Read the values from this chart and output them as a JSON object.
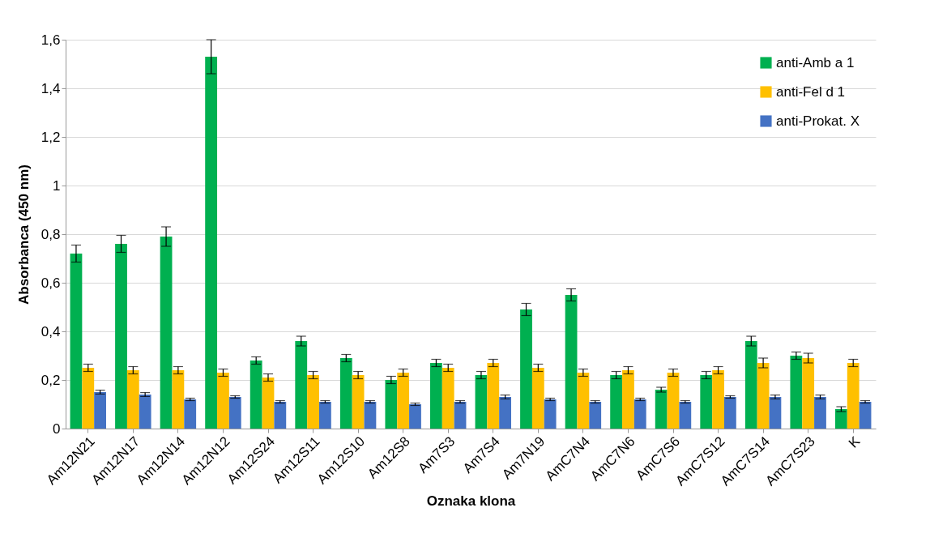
{
  "chart_data": {
    "type": "bar",
    "xlabel": "Oznaka klona",
    "ylabel": "Absorbanca (450 nm)",
    "categories": [
      "Am12N21",
      "Am12N17",
      "Am12N14",
      "Am12N12",
      "Am12S24",
      "Am12S11",
      "Am12S10",
      "Am12S8",
      "Am7S3",
      "Am7S4",
      "Am7N19",
      "AmC7N4",
      "AmC7N6",
      "AmC7S6",
      "AmC7S12",
      "AmC7S14",
      "AmC7S23",
      "K"
    ],
    "series": [
      {
        "name": "anti-Amb a 1",
        "color": "#00b050",
        "values": [
          0.72,
          0.76,
          0.79,
          1.53,
          0.28,
          0.36,
          0.29,
          0.2,
          0.27,
          0.22,
          0.49,
          0.55,
          0.22,
          0.16,
          0.22,
          0.36,
          0.3,
          0.08
        ],
        "errors": [
          0.035,
          0.035,
          0.04,
          0.07,
          0.015,
          0.02,
          0.015,
          0.015,
          0.015,
          0.015,
          0.025,
          0.025,
          0.015,
          0.01,
          0.015,
          0.02,
          0.015,
          0.01
        ]
      },
      {
        "name": "anti-Fel d 1",
        "color": "#ffc000",
        "values": [
          0.25,
          0.24,
          0.24,
          0.23,
          0.21,
          0.22,
          0.22,
          0.23,
          0.25,
          0.27,
          0.25,
          0.23,
          0.24,
          0.23,
          0.24,
          0.27,
          0.29,
          0.27
        ],
        "errors": [
          0.015,
          0.015,
          0.015,
          0.015,
          0.015,
          0.015,
          0.015,
          0.015,
          0.015,
          0.015,
          0.015,
          0.015,
          0.015,
          0.015,
          0.015,
          0.02,
          0.02,
          0.015
        ]
      },
      {
        "name": "anti-Prokat. X",
        "color": "#4472c4",
        "values": [
          0.15,
          0.14,
          0.12,
          0.13,
          0.11,
          0.11,
          0.11,
          0.1,
          0.11,
          0.13,
          0.12,
          0.11,
          0.12,
          0.11,
          0.13,
          0.13,
          0.13,
          0.11
        ],
        "errors": [
          0.008,
          0.008,
          0.005,
          0.005,
          0.005,
          0.005,
          0.005,
          0.005,
          0.005,
          0.008,
          0.005,
          0.005,
          0.005,
          0.005,
          0.005,
          0.008,
          0.008,
          0.005
        ]
      }
    ],
    "ylim": [
      0,
      1.6
    ],
    "yticks": [
      0,
      {
        "value": 0.2,
        "label": "0,2"
      },
      {
        "value": 0.4,
        "label": "0,4"
      },
      {
        "value": 0.6,
        "label": "0,6"
      },
      {
        "value": 0.8,
        "label": "0,8"
      },
      1,
      {
        "value": 1.2,
        "label": "1,2"
      },
      {
        "value": 1.4,
        "label": "1,4"
      },
      {
        "value": 1.6,
        "label": "1,6"
      }
    ],
    "grid": "y",
    "legend": "top right"
  }
}
